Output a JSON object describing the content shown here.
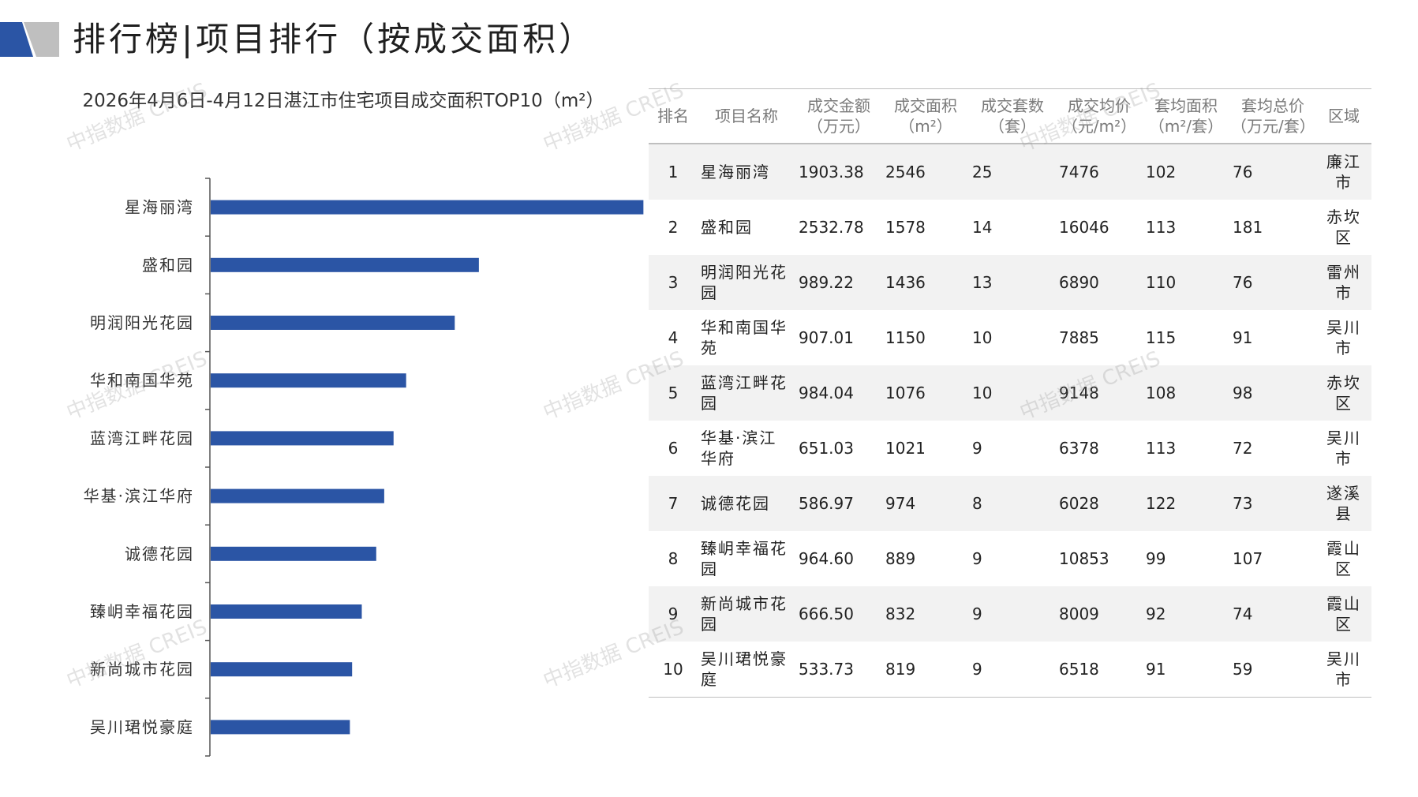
{
  "page": {
    "title": "排行榜|项目排行（按成交面积）",
    "colors": {
      "bar": "#2b55a5",
      "deco_blue": "#2b55a5",
      "deco_gray": "#bfbfbf",
      "row_stripe": "#f2f2f2"
    }
  },
  "watermark": {
    "text": "中指数据 CREIS"
  },
  "chart_data": {
    "type": "bar",
    "orientation": "horizontal",
    "title": "2026年4月6日-4月12日湛江市住宅项目成交面积TOP10（m²）",
    "categories": [
      "星海丽湾",
      "盛和园",
      "明润阳光花园",
      "华和南国华苑",
      "蓝湾江畔花园",
      "华基·滨江华府",
      "诚德花园",
      "臻岄幸福花园",
      "新尚城市花园",
      "吴川珺悦豪庭"
    ],
    "values": [
      2546,
      1578,
      1436,
      1150,
      1076,
      1021,
      974,
      889,
      832,
      819
    ],
    "xlim": [
      0,
      3250
    ],
    "grid": false,
    "legend": "none",
    "color": "#2b55a5"
  },
  "table": {
    "headers": [
      "排名",
      "项目名称",
      "成交金额（万元）",
      "成交面积（m²）",
      "成交套数（套）",
      "成交均价（元/m²）",
      "套均面积（m²/套）",
      "套均总价（万元/套）",
      "区域"
    ],
    "rows": [
      [
        "1",
        "星海丽湾",
        "1903.38",
        "2546",
        "25",
        "7476",
        "102",
        "76",
        "廉江市"
      ],
      [
        "2",
        "盛和园",
        "2532.78",
        "1578",
        "14",
        "16046",
        "113",
        "181",
        "赤坎区"
      ],
      [
        "3",
        "明润阳光花园",
        "989.22",
        "1436",
        "13",
        "6890",
        "110",
        "76",
        "雷州市"
      ],
      [
        "4",
        "华和南国华苑",
        "907.01",
        "1150",
        "10",
        "7885",
        "115",
        "91",
        "吴川市"
      ],
      [
        "5",
        "蓝湾江畔花园",
        "984.04",
        "1076",
        "10",
        "9148",
        "108",
        "98",
        "赤坎区"
      ],
      [
        "6",
        "华基·滨江华府",
        "651.03",
        "1021",
        "9",
        "6378",
        "113",
        "72",
        "吴川市"
      ],
      [
        "7",
        "诚德花园",
        "586.97",
        "974",
        "8",
        "6028",
        "122",
        "73",
        "遂溪县"
      ],
      [
        "8",
        "臻岄幸福花园",
        "964.60",
        "889",
        "9",
        "10853",
        "99",
        "107",
        "霞山区"
      ],
      [
        "9",
        "新尚城市花园",
        "666.50",
        "832",
        "9",
        "8009",
        "92",
        "74",
        "霞山区"
      ],
      [
        "10",
        "吴川珺悦豪庭",
        "533.73",
        "819",
        "9",
        "6518",
        "91",
        "59",
        "吴川市"
      ]
    ]
  }
}
